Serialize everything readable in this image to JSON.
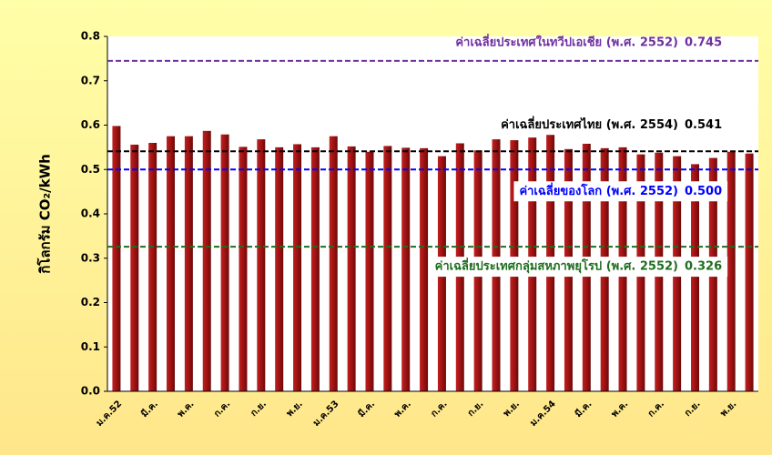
{
  "chart_data": {
    "type": "bar",
    "y_label": "กิโลกรัม CO₂/kWh",
    "categories": [
      "ม.ค.52",
      null,
      "มี.ค.",
      null,
      "พ.ค.",
      null,
      "ก.ค.",
      null,
      "ก.ย.",
      null,
      "พ.ย.",
      null,
      "ม.ค.53",
      null,
      "มี.ค.",
      null,
      "พ.ค.",
      null,
      "ก.ค.",
      null,
      "ก.ย.",
      null,
      "พ.ย.",
      null,
      "ม.ค.54",
      null,
      "มี.ค.",
      null,
      "พ.ค.",
      null,
      "ก.ค.",
      null,
      "ก.ย.",
      null,
      "พ.ย.",
      null
    ],
    "values": [
      0.598,
      0.556,
      0.56,
      0.575,
      0.575,
      0.587,
      0.579,
      0.551,
      0.568,
      0.55,
      0.557,
      0.55,
      0.575,
      0.552,
      0.54,
      0.553,
      0.549,
      0.548,
      0.53,
      0.559,
      0.543,
      0.568,
      0.566,
      0.572,
      0.578,
      0.546,
      0.558,
      0.548,
      0.55,
      0.534,
      0.538,
      0.53,
      0.512,
      0.526,
      0.54,
      0.536
    ],
    "color": "#a01212",
    "ylim": [
      0,
      0.8
    ],
    "yticks": [
      {
        "value": 0,
        "label": "0.0"
      },
      0.1,
      0.2,
      0.3,
      0.4,
      0.5,
      0.6,
      0.7,
      0.8
    ],
    "reference_lines": [
      {
        "label": "ค่าเฉลี่ยประเทศในทวีปเอเชีย (พ.ศ. 2552)",
        "value": 0.745,
        "color": "#7030a0"
      },
      {
        "label": "ค่าเฉลี่ยประเทศไทย (พ.ศ. 2554)",
        "value": 0.541,
        "color": "#000000"
      },
      {
        "label": "ค่าเฉลี่ยของโลก (พ.ศ. 2552)",
        "value": 0.5,
        "value_label": "0.500",
        "color": "#0000ff"
      },
      {
        "label": "ค่าเฉลี่ยประเทศกลุ่มสหภาพยุโรป (พ.ศ. 2552)",
        "value": 0.326,
        "color": "#1e6e1e"
      }
    ]
  }
}
